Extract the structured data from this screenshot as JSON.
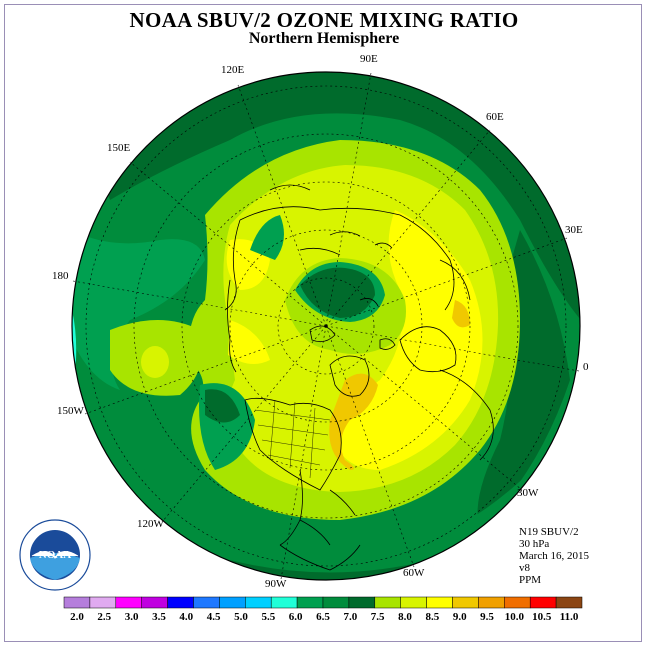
{
  "title": "NOAA SBUV/2 OZONE MIXING RATIO",
  "subtitle": "Northern Hemisphere",
  "longitude_labels": [
    "90E",
    "60E",
    "30E",
    "0",
    "30W",
    "60W",
    "90W",
    "120W",
    "150W",
    "180",
    "150E",
    "120E"
  ],
  "info": {
    "satellite": "N19 SBUV/2",
    "level": "30 hPa",
    "date": "March 16, 2015",
    "version": "v8",
    "units": "PPM"
  },
  "logo": {
    "text": "NOAA",
    "ring_text": "NATIONAL OCEANIC AND ATMOSPHERIC ADMINISTRATION · U.S. DEPARTMENT OF COMMERCE"
  },
  "colorbar": {
    "ticks": [
      "2.0",
      "2.5",
      "3.0",
      "3.5",
      "4.0",
      "4.5",
      "5.0",
      "5.5",
      "6.0",
      "6.5",
      "7.0",
      "7.5",
      "8.0",
      "8.5",
      "9.0",
      "9.5",
      "10.0",
      "10.5",
      "11.0"
    ],
    "colors": [
      "#b57edc",
      "#e0aaf0",
      "#ff00ff",
      "#c000e0",
      "#0000ff",
      "#1e78ff",
      "#00a0ff",
      "#00d0ff",
      "#20ffd8",
      "#00a050",
      "#008c3c",
      "#006b2c",
      "#a8e400",
      "#d8f400",
      "#ffff00",
      "#f0c800",
      "#f0a000",
      "#f06e00",
      "#ff0000",
      "#8b4513"
    ]
  }
}
